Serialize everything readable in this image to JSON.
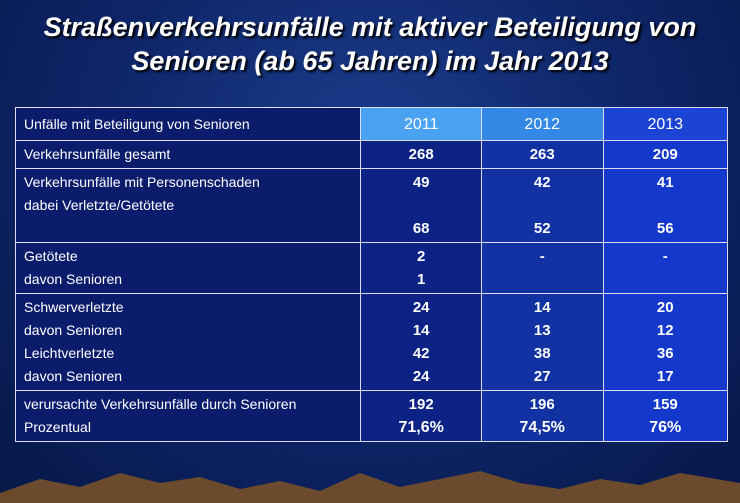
{
  "title": {
    "line1": "Straßenverkehrsunfälle mit aktiver Beteiligung von",
    "line2": "Senioren (ab 65 Jahren) im Jahr 2013"
  },
  "table": {
    "header": {
      "label": "Unfälle mit Beteiligung von Senioren",
      "years": [
        "2011",
        "2012",
        "2013"
      ]
    },
    "rows": [
      {
        "labels": [
          "Verkehrsunfälle gesamt"
        ],
        "values": [
          [
            "268"
          ],
          [
            "263"
          ],
          [
            "209"
          ]
        ]
      },
      {
        "labels": [
          "Verkehrsunfälle mit Personenschaden",
          "dabei Verletzte/Getötete"
        ],
        "values": [
          [
            "49",
            "68"
          ],
          [
            "42",
            "52"
          ],
          [
            "41",
            "56"
          ]
        ]
      },
      {
        "labels": [
          "Getötete",
          "davon Senioren"
        ],
        "values": [
          [
            "2",
            "1"
          ],
          [
            "-"
          ],
          [
            "-"
          ]
        ]
      },
      {
        "labels": [
          "Schwerverletzte",
          "davon Senioren",
          "Leichtverletzte",
          "davon Senioren"
        ],
        "values": [
          [
            "24",
            "14",
            "42",
            "24"
          ],
          [
            "14",
            "13",
            "38",
            "27"
          ],
          [
            "20",
            "12",
            "36",
            "17"
          ]
        ]
      },
      {
        "labels": [
          "verursachte Verkehrsunfälle durch Senioren",
          "Prozentual"
        ],
        "values": [
          [
            "192",
            "71,6%"
          ],
          [
            "196",
            "74,5%"
          ],
          [
            "159",
            "76%"
          ]
        ]
      }
    ]
  }
}
